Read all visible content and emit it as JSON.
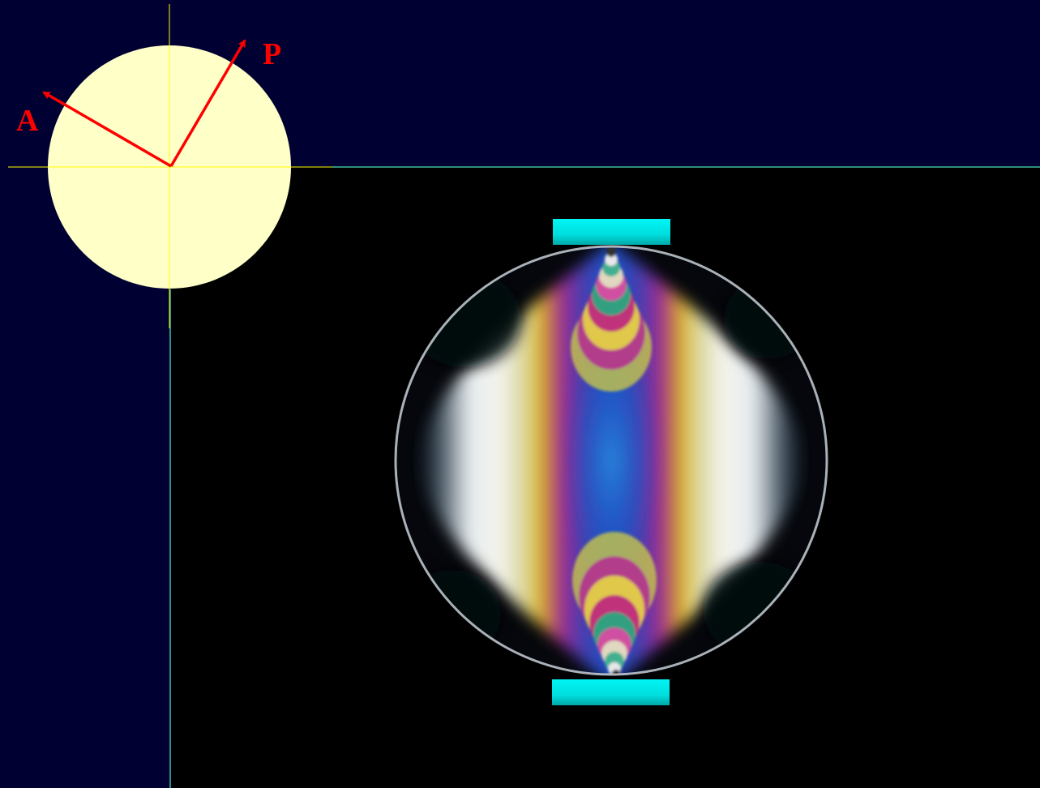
{
  "polarizer_diagram": {
    "analyzer_label": "A",
    "polarizer_label": "P",
    "disk_color": "#ffffc8",
    "arrow_color": "#ff0000"
  },
  "photoelastic_specimen": {
    "platen_color": "#00e8e8",
    "background_color": "#000000"
  },
  "colors": {
    "page_background": "#000033",
    "divider_line": "#3fbfa0"
  }
}
